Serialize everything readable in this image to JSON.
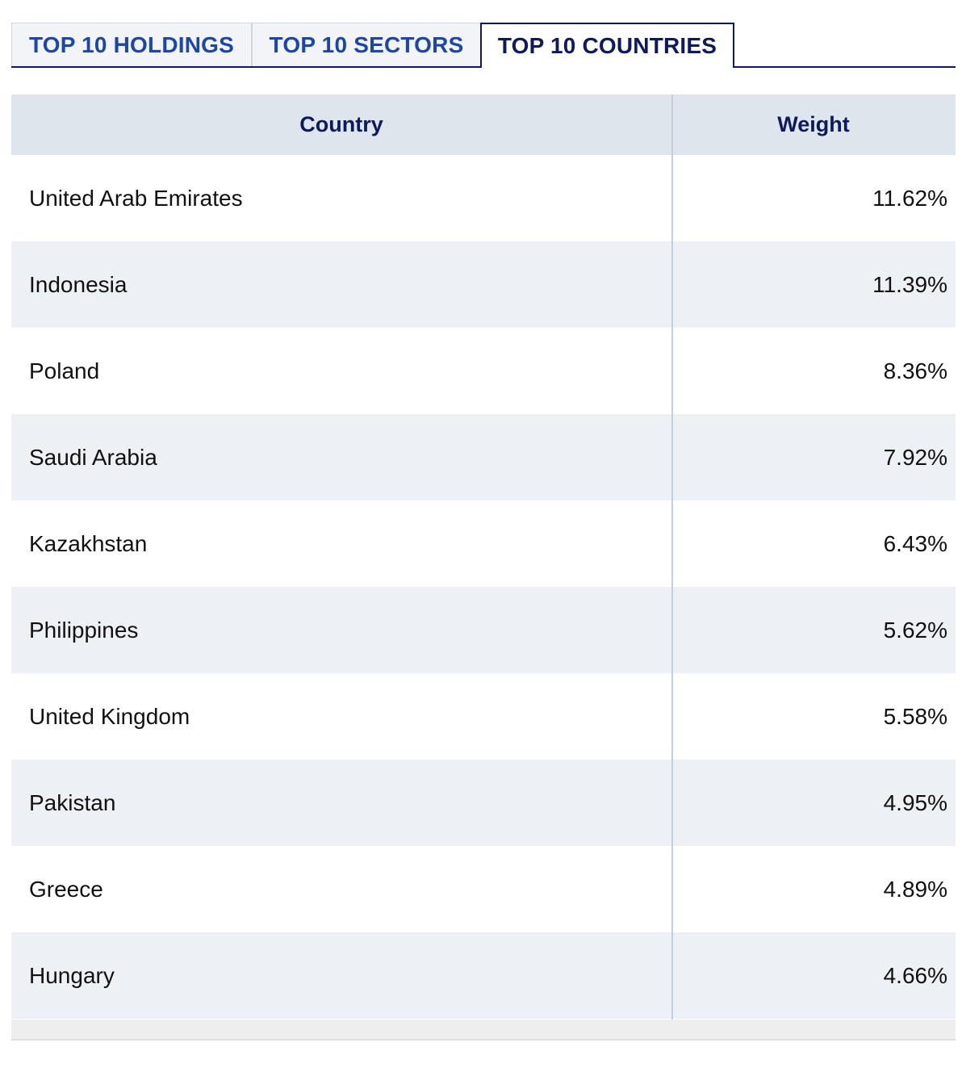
{
  "tabs": [
    {
      "label": "TOP 10 HOLDINGS",
      "active": false
    },
    {
      "label": "TOP 10 SECTORS",
      "active": false
    },
    {
      "label": "TOP 10 COUNTRIES",
      "active": true
    }
  ],
  "table": {
    "headers": {
      "country": "Country",
      "weight": "Weight"
    },
    "rows": [
      {
        "country": "United Arab Emirates",
        "weight": "11.62%"
      },
      {
        "country": "Indonesia",
        "weight": "11.39%"
      },
      {
        "country": "Poland",
        "weight": "8.36%"
      },
      {
        "country": "Saudi Arabia",
        "weight": "7.92%"
      },
      {
        "country": "Kazakhstan",
        "weight": "6.43%"
      },
      {
        "country": "Philippines",
        "weight": "5.62%"
      },
      {
        "country": "United Kingdom",
        "weight": "5.58%"
      },
      {
        "country": "Pakistan",
        "weight": "4.95%"
      },
      {
        "country": "Greece",
        "weight": "4.89%"
      },
      {
        "country": "Hungary",
        "weight": "4.66%"
      }
    ]
  },
  "colors": {
    "navy": "#0d1a5c",
    "tab_link_blue": "#1c47a8",
    "header_bg": "#dfe5ec",
    "stripe_bg": "#edf0f4"
  }
}
